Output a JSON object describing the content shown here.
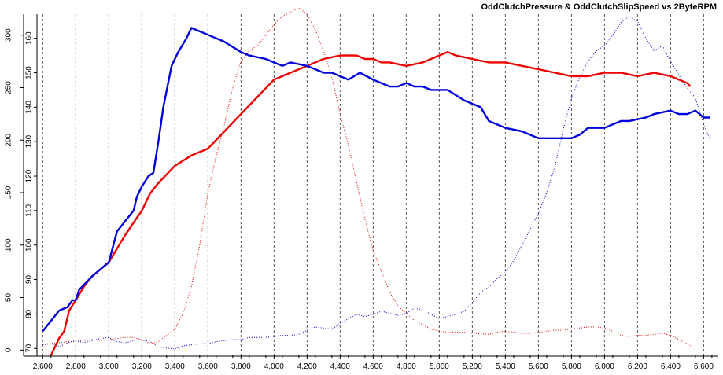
{
  "chart_data": {
    "type": "line",
    "title": "OddClutchPressure & OddClutchSlipSpeed vs 2ByteRPM",
    "xlabel": "",
    "x_ticks": [
      2600,
      2800,
      3000,
      3200,
      3400,
      3600,
      3800,
      4000,
      4200,
      4400,
      4600,
      4800,
      5000,
      5200,
      5400,
      5600,
      5800,
      6000,
      6200,
      6400,
      6600
    ],
    "x_tick_labels": [
      "2,600",
      "2,800",
      "3,000",
      "3,200",
      "3,400",
      "3,600",
      "3,800",
      "4,000",
      "4,200",
      "4,400",
      "4,600",
      "4,800",
      "5,000",
      "5,200",
      "5,400",
      "5,600",
      "5,800",
      "6,000",
      "6,200",
      "6,400",
      "6,600"
    ],
    "xlim": [
      2570,
      6660
    ],
    "y_left": {
      "ylim": [
        -5,
        320
      ],
      "ticks": [
        0,
        50,
        100,
        150,
        200,
        250,
        300
      ]
    },
    "y_right": {
      "ylim": [
        68,
        167
      ],
      "ticks": [
        70,
        80,
        90,
        100,
        110,
        120,
        130,
        140,
        150,
        160
      ]
    },
    "grid": {
      "vertical": true,
      "horizontal": false,
      "style": "dashed"
    },
    "colors": {
      "blue": "#0000dd",
      "red": "#ee0000"
    },
    "series": [
      {
        "color": "blue",
        "axis": "right",
        "style": "solid",
        "points": [
          [
            2600,
            75
          ],
          [
            2650,
            78
          ],
          [
            2700,
            81
          ],
          [
            2750,
            82
          ],
          [
            2780,
            84
          ],
          [
            2800,
            84
          ],
          [
            2820,
            87
          ],
          [
            2860,
            89
          ],
          [
            2900,
            91
          ],
          [
            2950,
            93
          ],
          [
            3000,
            95
          ],
          [
            3050,
            104
          ],
          [
            3100,
            107
          ],
          [
            3150,
            110
          ],
          [
            3170,
            114
          ],
          [
            3200,
            117
          ],
          [
            3240,
            120
          ],
          [
            3270,
            121
          ],
          [
            3300,
            130
          ],
          [
            3330,
            140
          ],
          [
            3380,
            152
          ],
          [
            3420,
            156
          ],
          [
            3470,
            160
          ],
          [
            3500,
            163
          ],
          [
            3550,
            162
          ],
          [
            3600,
            161
          ],
          [
            3650,
            160
          ],
          [
            3700,
            159
          ],
          [
            3800,
            156
          ],
          [
            3850,
            155
          ],
          [
            3950,
            154
          ],
          [
            4050,
            152
          ],
          [
            4100,
            153
          ],
          [
            4200,
            152
          ],
          [
            4300,
            150
          ],
          [
            4350,
            150
          ],
          [
            4450,
            148
          ],
          [
            4520,
            150
          ],
          [
            4600,
            148
          ],
          [
            4700,
            146
          ],
          [
            4750,
            146
          ],
          [
            4800,
            147
          ],
          [
            4850,
            146
          ],
          [
            4900,
            146
          ],
          [
            4950,
            145
          ],
          [
            5050,
            145
          ],
          [
            5150,
            142
          ],
          [
            5250,
            140
          ],
          [
            5300,
            136
          ],
          [
            5400,
            134
          ],
          [
            5500,
            133
          ],
          [
            5600,
            131
          ],
          [
            5650,
            131
          ],
          [
            5700,
            131
          ],
          [
            5800,
            131
          ],
          [
            5850,
            132
          ],
          [
            5900,
            134
          ],
          [
            6000,
            134
          ],
          [
            6100,
            136
          ],
          [
            6150,
            136
          ],
          [
            6250,
            137
          ],
          [
            6300,
            138
          ],
          [
            6400,
            139
          ],
          [
            6450,
            138
          ],
          [
            6500,
            138
          ],
          [
            6550,
            139
          ],
          [
            6600,
            137
          ],
          [
            6640,
            137
          ]
        ]
      },
      {
        "color": "red",
        "axis": "right",
        "style": "solid",
        "points": [
          [
            2650,
            68
          ],
          [
            2700,
            73
          ],
          [
            2730,
            75
          ],
          [
            2760,
            81
          ],
          [
            2800,
            84
          ],
          [
            2850,
            88
          ],
          [
            2900,
            91
          ],
          [
            3000,
            95
          ],
          [
            3100,
            103
          ],
          [
            3200,
            110
          ],
          [
            3250,
            115
          ],
          [
            3300,
            118
          ],
          [
            3400,
            123
          ],
          [
            3500,
            126
          ],
          [
            3600,
            128
          ],
          [
            3700,
            133
          ],
          [
            3800,
            138
          ],
          [
            3900,
            143
          ],
          [
            4000,
            148
          ],
          [
            4100,
            150
          ],
          [
            4200,
            152
          ],
          [
            4300,
            154
          ],
          [
            4400,
            155
          ],
          [
            4500,
            155
          ],
          [
            4550,
            154
          ],
          [
            4600,
            154
          ],
          [
            4650,
            153
          ],
          [
            4700,
            153
          ],
          [
            4800,
            152
          ],
          [
            4900,
            153
          ],
          [
            5000,
            155
          ],
          [
            5050,
            156
          ],
          [
            5100,
            155
          ],
          [
            5200,
            154
          ],
          [
            5300,
            153
          ],
          [
            5400,
            153
          ],
          [
            5500,
            152
          ],
          [
            5600,
            151
          ],
          [
            5700,
            150
          ],
          [
            5800,
            149
          ],
          [
            5900,
            149
          ],
          [
            6000,
            150
          ],
          [
            6100,
            150
          ],
          [
            6200,
            149
          ],
          [
            6300,
            150
          ],
          [
            6400,
            149
          ],
          [
            6500,
            147
          ],
          [
            6520,
            146
          ]
        ]
      },
      {
        "color": "red",
        "axis": "left",
        "style": "dotted",
        "points": [
          [
            2600,
            5
          ],
          [
            2650,
            6
          ],
          [
            2700,
            7
          ],
          [
            2750,
            8
          ],
          [
            2800,
            8
          ],
          [
            2850,
            9
          ],
          [
            2900,
            10
          ],
          [
            2950,
            9
          ],
          [
            3000,
            10
          ],
          [
            3050,
            11
          ],
          [
            3100,
            12
          ],
          [
            3150,
            12
          ],
          [
            3200,
            10
          ],
          [
            3250,
            6
          ],
          [
            3300,
            8
          ],
          [
            3350,
            14
          ],
          [
            3400,
            20
          ],
          [
            3450,
            35
          ],
          [
            3500,
            60
          ],
          [
            3550,
            100
          ],
          [
            3600,
            150
          ],
          [
            3650,
            185
          ],
          [
            3700,
            215
          ],
          [
            3750,
            250
          ],
          [
            3800,
            275
          ],
          [
            3850,
            285
          ],
          [
            3900,
            290
          ],
          [
            3950,
            300
          ],
          [
            4000,
            310
          ],
          [
            4050,
            318
          ],
          [
            4100,
            322
          ],
          [
            4150,
            326
          ],
          [
            4200,
            320
          ],
          [
            4250,
            305
          ],
          [
            4300,
            285
          ],
          [
            4350,
            260
          ],
          [
            4400,
            225
          ],
          [
            4450,
            195
          ],
          [
            4500,
            160
          ],
          [
            4550,
            125
          ],
          [
            4600,
            95
          ],
          [
            4650,
            75
          ],
          [
            4700,
            55
          ],
          [
            4750,
            42
          ],
          [
            4800,
            35
          ],
          [
            4850,
            28
          ],
          [
            4900,
            24
          ],
          [
            4950,
            20
          ],
          [
            5000,
            18
          ],
          [
            5050,
            17
          ],
          [
            5100,
            17
          ],
          [
            5150,
            17
          ],
          [
            5200,
            16
          ],
          [
            5300,
            15
          ],
          [
            5350,
            17
          ],
          [
            5400,
            18
          ],
          [
            5450,
            17
          ],
          [
            5500,
            16
          ],
          [
            5550,
            16
          ],
          [
            5600,
            17
          ],
          [
            5650,
            18
          ],
          [
            5700,
            19
          ],
          [
            5750,
            19
          ],
          [
            5800,
            20
          ],
          [
            5850,
            21
          ],
          [
            5900,
            22
          ],
          [
            5950,
            22
          ],
          [
            6000,
            21
          ],
          [
            6050,
            18
          ],
          [
            6100,
            14
          ],
          [
            6150,
            13
          ],
          [
            6200,
            14
          ],
          [
            6250,
            14
          ],
          [
            6300,
            15
          ],
          [
            6350,
            16
          ],
          [
            6400,
            14
          ],
          [
            6450,
            10
          ],
          [
            6500,
            6
          ],
          [
            6520,
            4
          ]
        ]
      },
      {
        "color": "blue",
        "axis": "left",
        "style": "dotted",
        "points": [
          [
            2600,
            5
          ],
          [
            2630,
            6
          ],
          [
            2650,
            7
          ],
          [
            2700,
            3
          ],
          [
            2750,
            7
          ],
          [
            2800,
            9
          ],
          [
            2850,
            7
          ],
          [
            2900,
            9
          ],
          [
            2950,
            11
          ],
          [
            3000,
            12
          ],
          [
            3050,
            8
          ],
          [
            3100,
            7
          ],
          [
            3150,
            9
          ],
          [
            3200,
            10
          ],
          [
            3250,
            8
          ],
          [
            3300,
            3
          ],
          [
            3350,
            2
          ],
          [
            3400,
            1
          ],
          [
            3450,
            4
          ],
          [
            3500,
            5
          ],
          [
            3550,
            6
          ],
          [
            3600,
            6
          ],
          [
            3650,
            8
          ],
          [
            3700,
            9
          ],
          [
            3750,
            10
          ],
          [
            3800,
            10
          ],
          [
            3850,
            12
          ],
          [
            3900,
            12
          ],
          [
            3950,
            12
          ],
          [
            4000,
            13
          ],
          [
            4050,
            14
          ],
          [
            4100,
            14
          ],
          [
            4150,
            15
          ],
          [
            4200,
            19
          ],
          [
            4250,
            22
          ],
          [
            4300,
            21
          ],
          [
            4350,
            20
          ],
          [
            4400,
            25
          ],
          [
            4450,
            30
          ],
          [
            4500,
            34
          ],
          [
            4550,
            32
          ],
          [
            4600,
            34
          ],
          [
            4650,
            37
          ],
          [
            4700,
            35
          ],
          [
            4750,
            33
          ],
          [
            4800,
            35
          ],
          [
            4850,
            40
          ],
          [
            4900,
            38
          ],
          [
            4950,
            34
          ],
          [
            5000,
            30
          ],
          [
            5050,
            32
          ],
          [
            5100,
            34
          ],
          [
            5150,
            37
          ],
          [
            5200,
            45
          ],
          [
            5250,
            55
          ],
          [
            5300,
            60
          ],
          [
            5350,
            68
          ],
          [
            5400,
            75
          ],
          [
            5450,
            85
          ],
          [
            5500,
            100
          ],
          [
            5550,
            115
          ],
          [
            5600,
            130
          ],
          [
            5650,
            150
          ],
          [
            5700,
            175
          ],
          [
            5750,
            210
          ],
          [
            5800,
            240
          ],
          [
            5850,
            260
          ],
          [
            5900,
            275
          ],
          [
            5950,
            285
          ],
          [
            6000,
            290
          ],
          [
            6050,
            300
          ],
          [
            6100,
            312
          ],
          [
            6150,
            318
          ],
          [
            6200,
            313
          ],
          [
            6250,
            297
          ],
          [
            6300,
            285
          ],
          [
            6350,
            290
          ],
          [
            6400,
            275
          ],
          [
            6450,
            262
          ],
          [
            6500,
            250
          ],
          [
            6550,
            240
          ],
          [
            6600,
            215
          ],
          [
            6640,
            200
          ]
        ]
      }
    ]
  }
}
